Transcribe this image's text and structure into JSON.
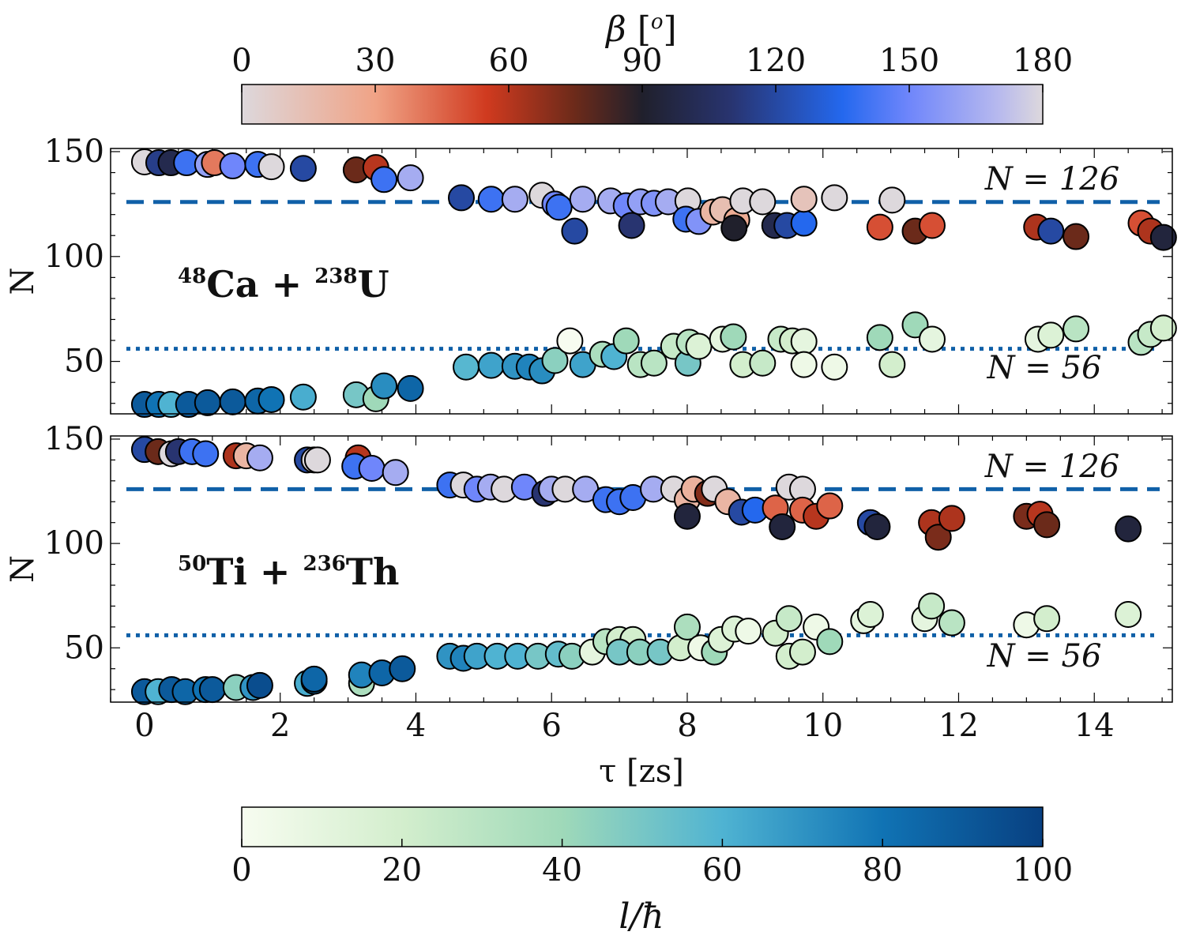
{
  "chart_data": {
    "type": "scatter",
    "xlabel": "τ [zs]",
    "ylabel": "N",
    "xlim": [
      -0.5,
      15.15
    ],
    "xticks": [
      0,
      2,
      4,
      6,
      8,
      10,
      12,
      14
    ],
    "yticks": [
      50,
      100,
      150
    ],
    "top_colorbar": {
      "label": "β [o]",
      "label_main": "β",
      "label_unit": "o",
      "range": [
        0,
        180
      ],
      "ticks": [
        0,
        30,
        60,
        90,
        120,
        150,
        180
      ],
      "stops": [
        [
          0,
          "#ddd8dc"
        ],
        [
          30,
          "#f0a386"
        ],
        [
          55,
          "#d03a1f"
        ],
        [
          75,
          "#6b2a1a"
        ],
        [
          90,
          "#20202c"
        ],
        [
          110,
          "#283470"
        ],
        [
          135,
          "#2468ee"
        ],
        [
          150,
          "#6f86fb"
        ],
        [
          170,
          "#b7b9ee"
        ],
        [
          180,
          "#ddd8dc"
        ]
      ]
    },
    "bottom_colorbar": {
      "label": "l/ħ",
      "range": [
        0,
        100
      ],
      "ticks": [
        0,
        20,
        40,
        60,
        80,
        100
      ],
      "stops": [
        [
          0,
          "#f7fcf0"
        ],
        [
          20,
          "#d3eecd"
        ],
        [
          40,
          "#9fd9b9"
        ],
        [
          60,
          "#4fb3d2"
        ],
        [
          80,
          "#1073b4"
        ],
        [
          100,
          "#084081"
        ]
      ]
    },
    "magic_lines": {
      "heavy": {
        "value": 126,
        "label": "N = 126",
        "style": "dashed"
      },
      "light": {
        "value": 56,
        "label": "N = 56",
        "style": "dotted"
      },
      "color": "#1060a8"
    },
    "panels": [
      {
        "title": "48Ca + 238U",
        "title_parts": {
          "a1": "48",
          "e1": "Ca",
          "op": "+",
          "a2": "238",
          "e2": "U"
        },
        "ylim": [
          25,
          151.5
        ],
        "heavy_fragments": [
          [
            0,
            145.1,
            0
          ],
          [
            0.21,
            144.7,
            115
          ],
          [
            0.39,
            144.7,
            100
          ],
          [
            0.62,
            144.7,
            140
          ],
          [
            0.93,
            143.9,
            160
          ],
          [
            1.03,
            144.7,
            40
          ],
          [
            1.3,
            143.2,
            150
          ],
          [
            1.67,
            143.9,
            140
          ],
          [
            1.87,
            142.8,
            0
          ],
          [
            2.34,
            142.0,
            120
          ],
          [
            3.12,
            141.3,
            75
          ],
          [
            3.41,
            142.4,
            60
          ],
          [
            3.53,
            136.7,
            140
          ],
          [
            3.92,
            137.5,
            165
          ],
          [
            4.67,
            128.0,
            120
          ],
          [
            5.11,
            127.3,
            140
          ],
          [
            5.46,
            127.3,
            165
          ],
          [
            5.86,
            129.2,
            0
          ],
          [
            6.05,
            125.0,
            150
          ],
          [
            6.11,
            123.5,
            140
          ],
          [
            6.46,
            127.3,
            165
          ],
          [
            6.34,
            112.1,
            120
          ],
          [
            6.87,
            126.5,
            165
          ],
          [
            7.1,
            124.2,
            150
          ],
          [
            7.31,
            126.1,
            160
          ],
          [
            7.51,
            125.4,
            155
          ],
          [
            7.18,
            114.8,
            110
          ],
          [
            7.72,
            126.1,
            165
          ],
          [
            8.01,
            126.5,
            0
          ],
          [
            7.98,
            117.8,
            140
          ],
          [
            8.17,
            116.7,
            155
          ],
          [
            8.38,
            121.2,
            20
          ],
          [
            8.52,
            122.3,
            15
          ],
          [
            8.73,
            117.4,
            25
          ],
          [
            8.69,
            113.6,
            90
          ],
          [
            8.82,
            126.5,
            0
          ],
          [
            9.11,
            126.1,
            0
          ],
          [
            9.29,
            114.8,
            100
          ],
          [
            9.47,
            114.8,
            120
          ],
          [
            9.72,
            115.9,
            135
          ],
          [
            9.72,
            127.3,
            12
          ],
          [
            10.17,
            128.0,
            0
          ],
          [
            10.84,
            114.0,
            50
          ],
          [
            11.02,
            126.9,
            0
          ],
          [
            11.36,
            112.1,
            75
          ],
          [
            11.61,
            114.8,
            50
          ],
          [
            13.15,
            114.0,
            62
          ],
          [
            13.36,
            112.1,
            120
          ],
          [
            13.73,
            109.5,
            75
          ],
          [
            14.69,
            115.9,
            50
          ],
          [
            14.83,
            112.1,
            62
          ],
          [
            15.02,
            109.1,
            95
          ]
        ],
        "light_fragments": [
          [
            0,
            29.5,
            90
          ],
          [
            0.21,
            29.5,
            80
          ],
          [
            0.39,
            29.5,
            60
          ],
          [
            0.65,
            29.5,
            90
          ],
          [
            0.93,
            30.3,
            90
          ],
          [
            1.3,
            30.7,
            90
          ],
          [
            1.67,
            31.1,
            85
          ],
          [
            1.87,
            31.8,
            80
          ],
          [
            2.34,
            33.0,
            62
          ],
          [
            3.12,
            34.1,
            50
          ],
          [
            3.41,
            32.2,
            40
          ],
          [
            3.53,
            38.3,
            72
          ],
          [
            3.92,
            37.1,
            85
          ],
          [
            4.74,
            47.3,
            58
          ],
          [
            5.11,
            48.1,
            65
          ],
          [
            5.46,
            47.7,
            70
          ],
          [
            5.67,
            47.3,
            75
          ],
          [
            5.86,
            45.5,
            72
          ],
          [
            6.05,
            50.4,
            45
          ],
          [
            6.27,
            59.8,
            0
          ],
          [
            6.46,
            48.5,
            65
          ],
          [
            6.75,
            53.4,
            35
          ],
          [
            6.92,
            52.3,
            60
          ],
          [
            7.1,
            59.8,
            40
          ],
          [
            7.31,
            48.5,
            30
          ],
          [
            7.51,
            49.2,
            30
          ],
          [
            7.8,
            57.2,
            25
          ],
          [
            8.01,
            49.2,
            50
          ],
          [
            8.03,
            59.1,
            30
          ],
          [
            8.17,
            57.2,
            15
          ],
          [
            8.52,
            60.6,
            10
          ],
          [
            8.68,
            61.7,
            40
          ],
          [
            8.82,
            48.5,
            20
          ],
          [
            9.11,
            49.2,
            25
          ],
          [
            9.38,
            60.6,
            25
          ],
          [
            9.55,
            59.8,
            20
          ],
          [
            9.72,
            59.5,
            10
          ],
          [
            9.72,
            48.5,
            5
          ],
          [
            10.17,
            47.3,
            5
          ],
          [
            10.84,
            61.4,
            40
          ],
          [
            11.02,
            48.5,
            20
          ],
          [
            11.36,
            67.4,
            40
          ],
          [
            11.61,
            60.6,
            10
          ],
          [
            13.17,
            60.6,
            10
          ],
          [
            13.36,
            62.5,
            15
          ],
          [
            13.73,
            65.5,
            30
          ],
          [
            14.69,
            59.1,
            30
          ],
          [
            14.83,
            62.9,
            25
          ],
          [
            15.02,
            65.9,
            20
          ]
        ]
      },
      {
        "title": "50Ti + 236Th",
        "title_parts": {
          "a1": "50",
          "e1": "Ti",
          "op": "+",
          "a2": "236",
          "e2": "Th"
        },
        "ylim": [
          24,
          151.5
        ],
        "heavy_fragments": [
          [
            0,
            145,
            120
          ],
          [
            0.2,
            144,
            75
          ],
          [
            0.4,
            143,
            0
          ],
          [
            0.5,
            144,
            110
          ],
          [
            0.7,
            144,
            140
          ],
          [
            0.9,
            143,
            140
          ],
          [
            1.35,
            142,
            62
          ],
          [
            1.5,
            142,
            20
          ],
          [
            1.7,
            141,
            165
          ],
          [
            2.4,
            140,
            120
          ],
          [
            2.5,
            140,
            0
          ],
          [
            2.55,
            140,
            0
          ],
          [
            3.15,
            141,
            60
          ],
          [
            3.1,
            137,
            140
          ],
          [
            3.35,
            136,
            150
          ],
          [
            3.7,
            134,
            165
          ],
          [
            4.5,
            128,
            140
          ],
          [
            4.7,
            128,
            0
          ],
          [
            4.9,
            126,
            150
          ],
          [
            5.1,
            127,
            165
          ],
          [
            5.3,
            126,
            0
          ],
          [
            5.6,
            127,
            150
          ],
          [
            5.9,
            124,
            110
          ],
          [
            6.0,
            126,
            165
          ],
          [
            6.2,
            126,
            0
          ],
          [
            6.5,
            126,
            165
          ],
          [
            6.8,
            121,
            140
          ],
          [
            7.0,
            120,
            140
          ],
          [
            7.2,
            122,
            140
          ],
          [
            7.5,
            126,
            165
          ],
          [
            7.8,
            126,
            0
          ],
          [
            8.0,
            121,
            20
          ],
          [
            8.1,
            126,
            22
          ],
          [
            8.0,
            113,
            95
          ],
          [
            8.3,
            124,
            70
          ],
          [
            8.4,
            126,
            0
          ],
          [
            8.6,
            120,
            20
          ],
          [
            8.8,
            115,
            120
          ],
          [
            9.0,
            116,
            135
          ],
          [
            9.3,
            117,
            45
          ],
          [
            9.4,
            108,
            95
          ],
          [
            9.5,
            127,
            0
          ],
          [
            9.7,
            126,
            0
          ],
          [
            9.7,
            116,
            45
          ],
          [
            9.9,
            113,
            60
          ],
          [
            10.1,
            118,
            45
          ],
          [
            10.7,
            110,
            120
          ],
          [
            10.8,
            108,
            95
          ],
          [
            11.6,
            110,
            62
          ],
          [
            11.7,
            103,
            72
          ],
          [
            11.9,
            112,
            62
          ],
          [
            13.0,
            113,
            72
          ],
          [
            13.2,
            114,
            60
          ],
          [
            13.3,
            109,
            75
          ],
          [
            14.5,
            107,
            95
          ]
        ],
        "light_fragments": [
          [
            0,
            29,
            90
          ],
          [
            0.2,
            29,
            60
          ],
          [
            0.4,
            30,
            90
          ],
          [
            0.6,
            29,
            85
          ],
          [
            0.9,
            30,
            80
          ],
          [
            1.0,
            30,
            90
          ],
          [
            1.35,
            31,
            45
          ],
          [
            1.6,
            31,
            70
          ],
          [
            1.7,
            32,
            95
          ],
          [
            2.4,
            33,
            62
          ],
          [
            2.5,
            34,
            80
          ],
          [
            2.5,
            35,
            85
          ],
          [
            3.2,
            33,
            35
          ],
          [
            3.2,
            37,
            75
          ],
          [
            3.5,
            38,
            85
          ],
          [
            3.8,
            40,
            90
          ],
          [
            4.5,
            46,
            70
          ],
          [
            4.7,
            45,
            75
          ],
          [
            4.9,
            46,
            65
          ],
          [
            5.2,
            46,
            60
          ],
          [
            5.5,
            46,
            60
          ],
          [
            5.8,
            46,
            50
          ],
          [
            6.1,
            47,
            55
          ],
          [
            6.3,
            46,
            45
          ],
          [
            6.6,
            48,
            10
          ],
          [
            6.8,
            53,
            30
          ],
          [
            7.0,
            54,
            20
          ],
          [
            7.2,
            54,
            20
          ],
          [
            7.0,
            48,
            50
          ],
          [
            7.3,
            48,
            45
          ],
          [
            7.6,
            48,
            50
          ],
          [
            7.9,
            50,
            20
          ],
          [
            8.0,
            60,
            35
          ],
          [
            8.2,
            50,
            5
          ],
          [
            8.4,
            48,
            40
          ],
          [
            8.5,
            54,
            15
          ],
          [
            8.7,
            59,
            15
          ],
          [
            8.9,
            58,
            5
          ],
          [
            9.3,
            57,
            20
          ],
          [
            9.5,
            64,
            25
          ],
          [
            9.5,
            46,
            20
          ],
          [
            9.7,
            48,
            20
          ],
          [
            9.9,
            60,
            5
          ],
          [
            10.1,
            53,
            40
          ],
          [
            10.6,
            63,
            10
          ],
          [
            10.7,
            66,
            15
          ],
          [
            11.5,
            64,
            10
          ],
          [
            11.6,
            70,
            25
          ],
          [
            11.9,
            62,
            30
          ],
          [
            13.0,
            61,
            5
          ],
          [
            13.3,
            64,
            20
          ],
          [
            14.5,
            66,
            15
          ]
        ]
      }
    ]
  }
}
